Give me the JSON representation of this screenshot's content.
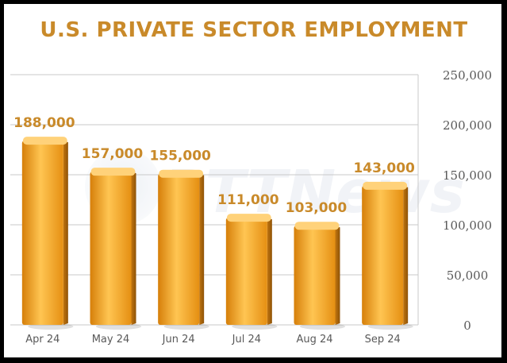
{
  "chart_data": {
    "type": "bar",
    "title": "U.S. PRIVATE SECTOR EMPLOYMENT",
    "categories": [
      "Apr 24",
      "May 24",
      "Jun 24",
      "Jul 24",
      "Aug 24",
      "Sep 24"
    ],
    "values": [
      188000,
      157000,
      155000,
      111000,
      103000,
      143000
    ],
    "data_labels": [
      "188,000",
      "157,000",
      "155,000",
      "111,000",
      "103,000",
      "143,000"
    ],
    "y_ticks": [
      "0",
      "50,000",
      "100,000",
      "150,000",
      "200,000",
      "250,000"
    ],
    "ylim": [
      0,
      250000
    ],
    "y_axis_side": "right",
    "grid": true,
    "watermark": "RTTNews",
    "colors": {
      "title": "#c98a2a",
      "label": "#c98a2a",
      "bar_face": "#f4a31c",
      "bar_face_light": "#ffc552",
      "bar_face_dark": "#d67f0a",
      "bar_top": "#ffd27a",
      "bar_side": "#b56a08",
      "grid": "#c9c9c9",
      "tick": "#595959"
    }
  }
}
